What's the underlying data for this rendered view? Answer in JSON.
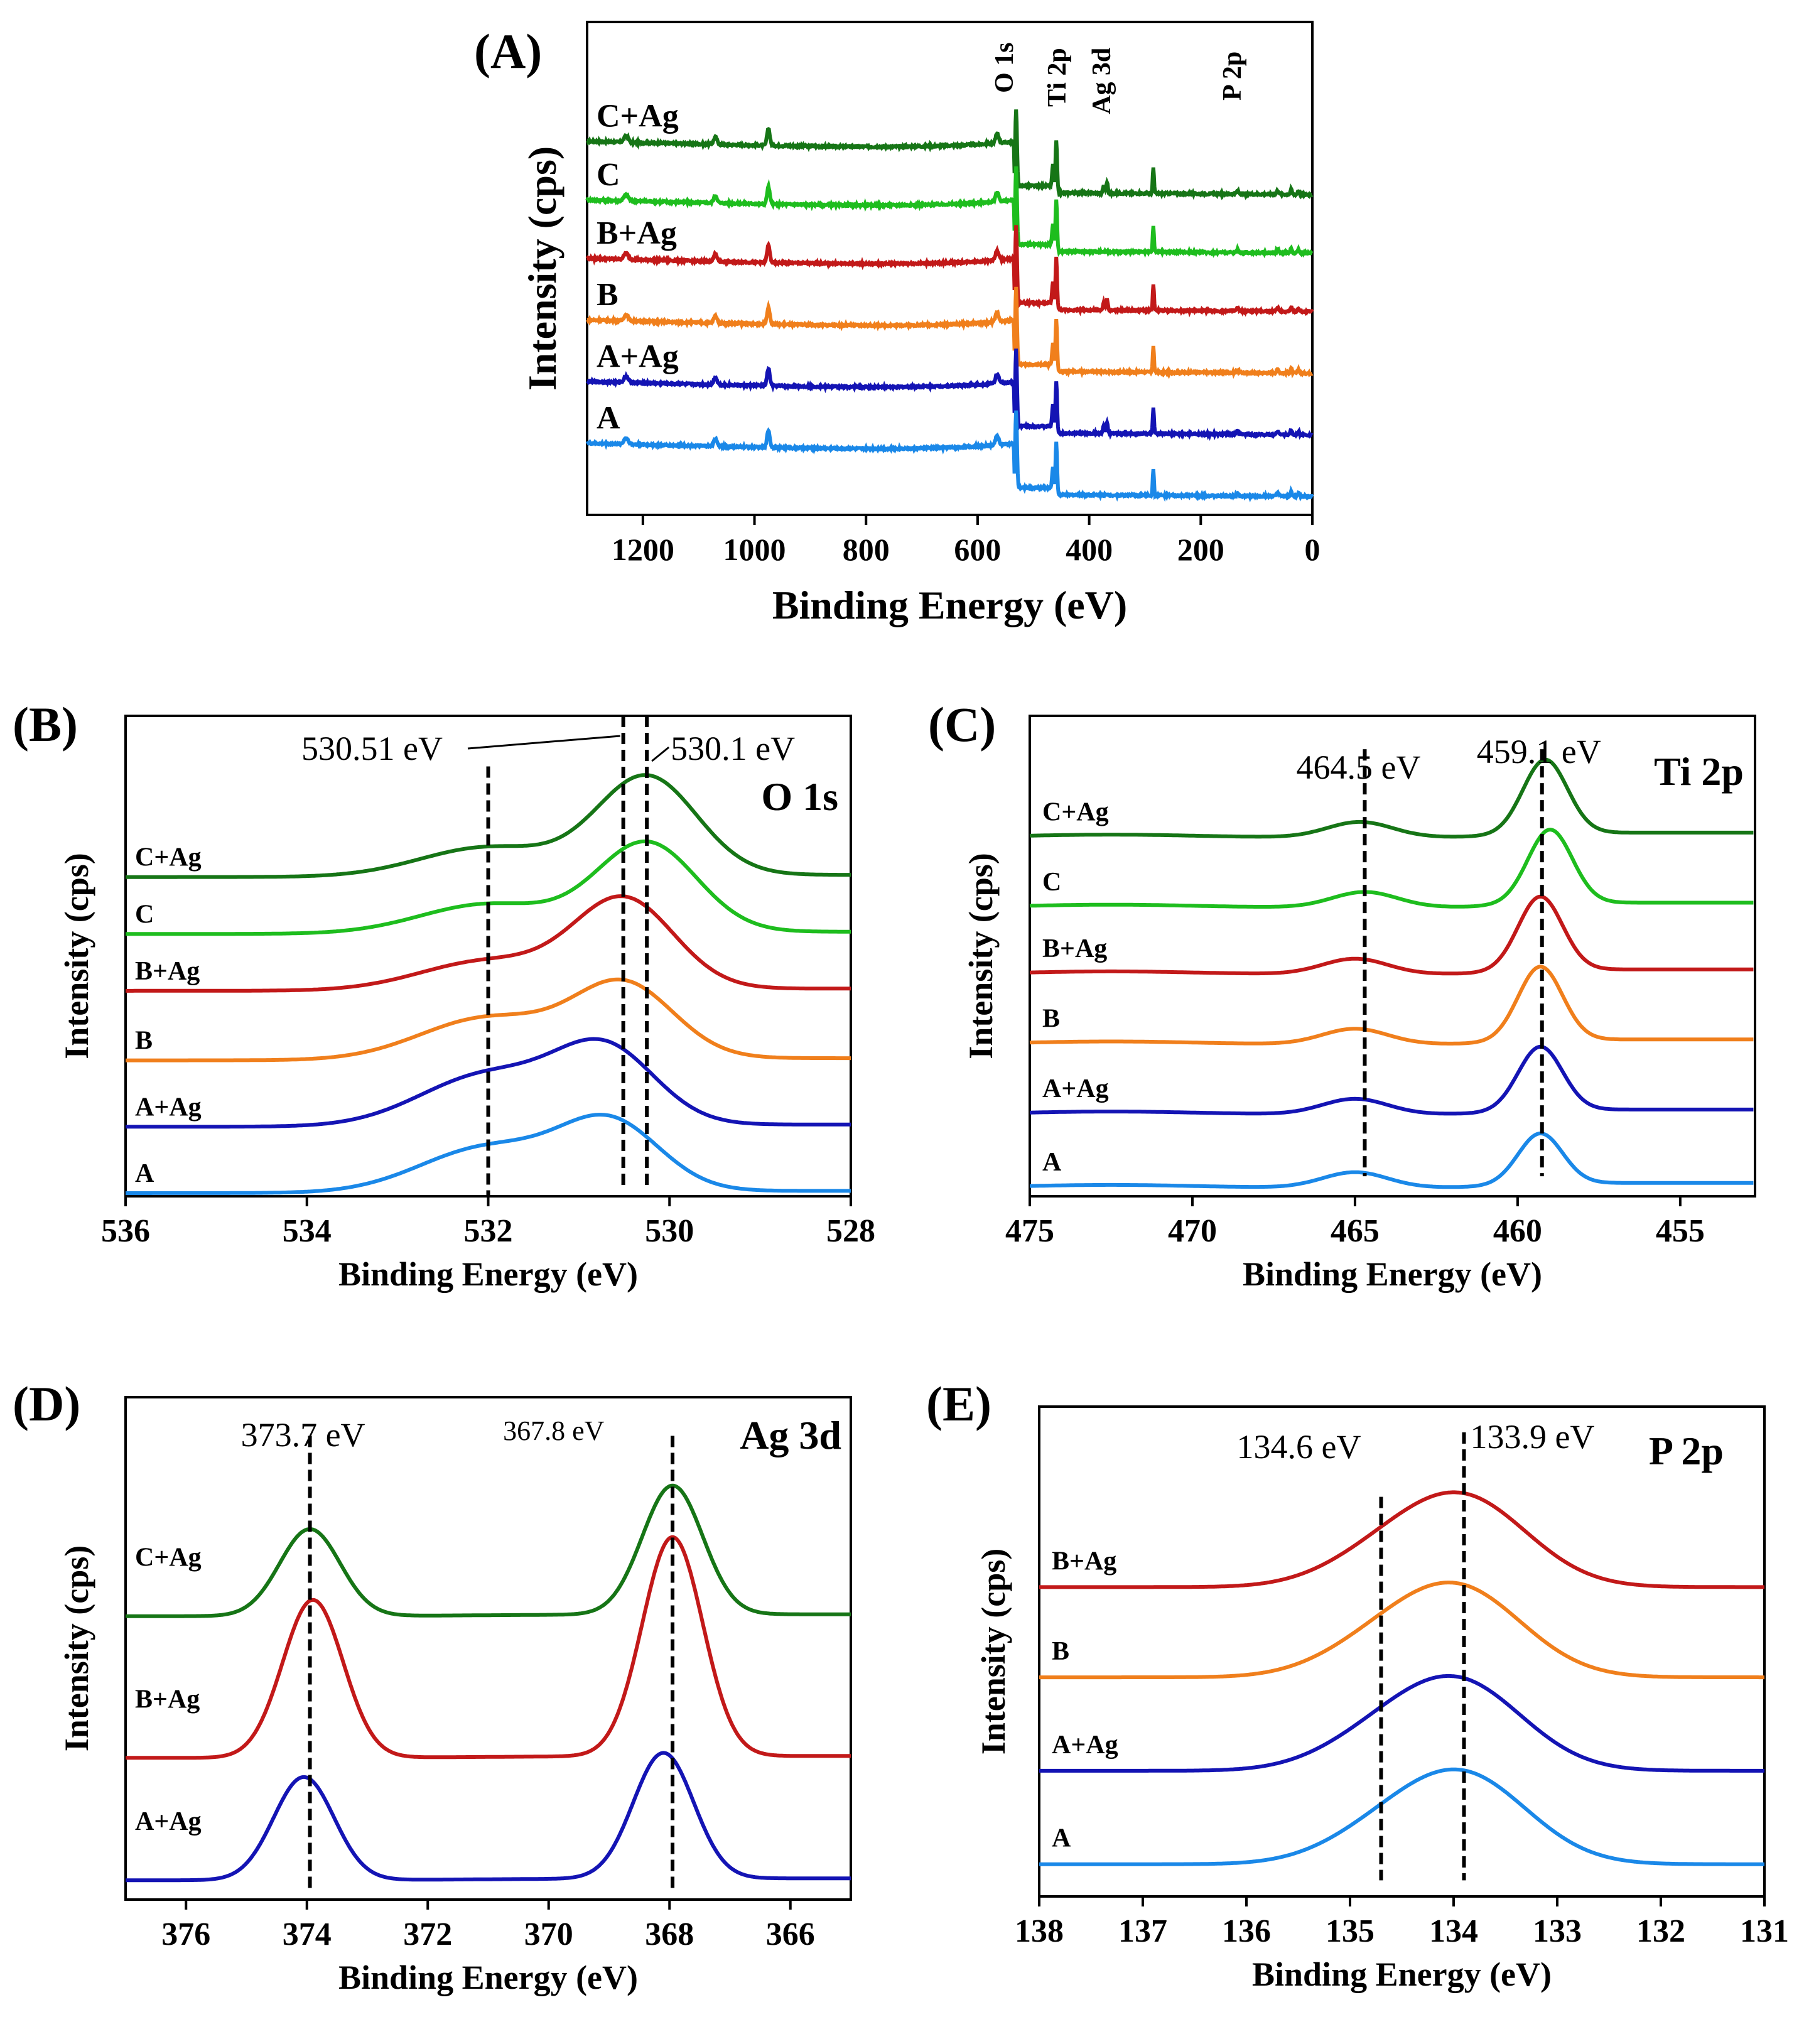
{
  "series_colors": {
    "A": "#1a88e8",
    "A+Ag": "#1414b4",
    "B": "#f07f1c",
    "B+Ag": "#c21919",
    "C": "#1ebd1e",
    "C+Ag": "#167516"
  },
  "chart_data": [
    {
      "panel": "(A)",
      "type": "line",
      "title": "",
      "xlabel": "Binding Energy (eV)",
      "ylabel": "Intensity (cps)",
      "xlim": [
        1300,
        0
      ],
      "xticks": [
        "1200",
        "1000",
        "800",
        "600",
        "400",
        "200",
        "0"
      ],
      "peak_labels": [
        "O 1s",
        "Ti 2p",
        "Ag 3d",
        "P 2p"
      ],
      "peak_positions_ev": [
        531,
        459,
        368,
        134
      ],
      "series": [
        {
          "name": "C+Ag",
          "offset": 5.2,
          "ag": true
        },
        {
          "name": "C",
          "offset": 4.25,
          "ag": false
        },
        {
          "name": "B+Ag",
          "offset": 3.3,
          "ag": true
        },
        {
          "name": "B",
          "offset": 2.3,
          "ag": false
        },
        {
          "name": "A+Ag",
          "offset": 1.3,
          "ag": true
        },
        {
          "name": "A",
          "offset": 0.3,
          "ag": false
        }
      ]
    },
    {
      "panel": "(B)",
      "type": "line",
      "title": "O 1s",
      "xlabel": "Binding Energy (eV)",
      "ylabel": "Intensity (cps)",
      "xlim": [
        536,
        528
      ],
      "xticks": [
        "536",
        "534",
        "532",
        "530",
        "528"
      ],
      "annotations": [
        "530.51 eV",
        "530.1 eV"
      ],
      "dashed_lines_ev": [
        532.0,
        530.51,
        530.25
      ],
      "series": [
        {
          "name": "C+Ag",
          "offset": 5.0,
          "main_center": 530.25,
          "main_height": 1.55,
          "shoulder_height": 0.45
        },
        {
          "name": "C",
          "offset": 4.1,
          "main_center": 530.25,
          "main_height": 1.4,
          "shoulder_height": 0.45
        },
        {
          "name": "B+Ag",
          "offset": 3.2,
          "main_center": 530.5,
          "main_height": 1.4,
          "shoulder_height": 0.45
        },
        {
          "name": "B",
          "offset": 2.1,
          "main_center": 530.5,
          "main_height": 1.15,
          "shoulder_height": 0.65
        },
        {
          "name": "A+Ag",
          "offset": 1.05,
          "main_center": 530.7,
          "main_height": 1.15,
          "shoulder_height": 0.8
        },
        {
          "name": "A",
          "offset": 0.0,
          "main_center": 530.65,
          "main_height": 1.05,
          "shoulder_height": 0.7
        }
      ]
    },
    {
      "panel": "(C)",
      "type": "line",
      "title": "Ti 2p",
      "xlabel": "Binding Energy (eV)",
      "ylabel": "Intensity (cps)",
      "xlim": [
        475,
        452.7
      ],
      "xticks": [
        "475",
        "470",
        "465",
        "460",
        "455"
      ],
      "annotations": [
        "464.5 eV",
        "459.1 eV"
      ],
      "dashed_lines_ev": [
        464.7,
        459.25
      ],
      "series": [
        {
          "name": "C+Ag",
          "offset": 5.3,
          "center": 459.15,
          "height": 1.1
        },
        {
          "name": "C",
          "offset": 4.25,
          "center": 459.0,
          "height": 1.1
        },
        {
          "name": "B+Ag",
          "offset": 3.25,
          "center": 459.3,
          "height": 1.1
        },
        {
          "name": "B",
          "offset": 2.2,
          "center": 459.3,
          "height": 1.1
        },
        {
          "name": "A+Ag",
          "offset": 1.15,
          "center": 459.3,
          "height": 0.95
        },
        {
          "name": "A",
          "offset": 0.05,
          "center": 459.3,
          "height": 0.75
        }
      ]
    },
    {
      "panel": "(D)",
      "type": "line",
      "title": "Ag 3d",
      "xlabel": "Binding Energy (eV)",
      "ylabel": "Intensity (cps)",
      "xlim": [
        377,
        365
      ],
      "xticks": [
        "376",
        "374",
        "372",
        "370",
        "368",
        "366"
      ],
      "annotations": [
        "373.7 eV",
        "367.8 eV"
      ],
      "dashed_lines_ev": [
        373.95,
        367.95
      ],
      "series": [
        {
          "name": "C+Ag",
          "offset": 4.4,
          "peak1_center": 373.95,
          "peak1_height": 1.35,
          "peak2_center": 367.95,
          "peak2_height": 2.0
        },
        {
          "name": "B+Ag",
          "offset": 2.2,
          "peak1_center": 373.9,
          "peak1_height": 2.45,
          "peak2_center": 367.95,
          "peak2_height": 3.4
        },
        {
          "name": "A+Ag",
          "offset": 0.3,
          "peak1_center": 374.05,
          "peak1_height": 1.6,
          "peak2_center": 368.1,
          "peak2_height": 1.95
        }
      ]
    },
    {
      "panel": "(E)",
      "type": "line",
      "title": "P 2p",
      "xlabel": "Binding Energy (eV)",
      "ylabel": "Intensity (cps)",
      "xlim": [
        138,
        131
      ],
      "xticks": [
        "138",
        "137",
        "136",
        "135",
        "134",
        "133",
        "132",
        "131"
      ],
      "annotations": [
        "134.6 eV",
        "133.9 eV"
      ],
      "dashed_lines_ev": [
        134.7,
        133.9
      ],
      "series": [
        {
          "name": "B+Ag",
          "offset": 4.8,
          "center": 133.9,
          "height": 1.35
        },
        {
          "name": "B",
          "offset": 3.4,
          "center": 133.95,
          "height": 1.35
        },
        {
          "name": "A+Ag",
          "offset": 1.95,
          "center": 133.95,
          "height": 1.35
        },
        {
          "name": "A",
          "offset": 0.5,
          "center": 133.9,
          "height": 1.35
        }
      ]
    }
  ]
}
